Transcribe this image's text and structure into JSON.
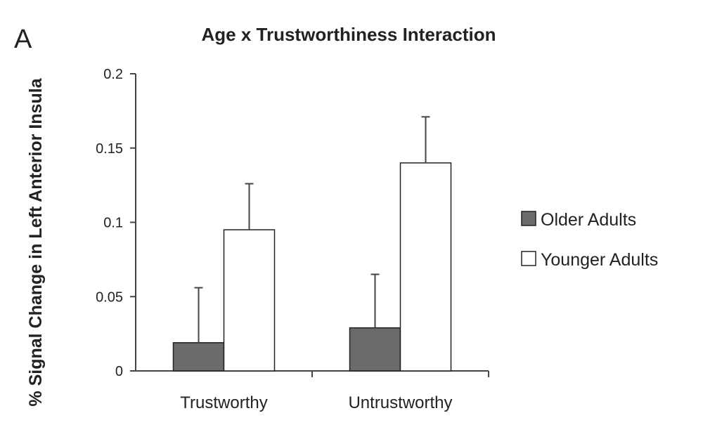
{
  "panel_label": "A",
  "chart_data": {
    "type": "bar",
    "title": "Age x Trustworthiness Interaction",
    "xlabel": "",
    "ylabel": "% Signal Change in Left Anterior Insula",
    "ylim": [
      0,
      0.2
    ],
    "yticks": [
      0,
      0.05,
      0.1,
      0.15,
      0.2
    ],
    "ytick_labels": [
      "0",
      "0.05",
      "0.1",
      "0.15",
      "0.2"
    ],
    "categories": [
      "Trustworthy",
      "Untrustworthy"
    ],
    "series": [
      {
        "name": "Older Adults",
        "values": [
          0.019,
          0.029
        ],
        "error_upper": [
          0.056,
          0.065
        ],
        "color": "#6b6b6b"
      },
      {
        "name": "Younger Adults",
        "values": [
          0.095,
          0.14
        ],
        "error_upper": [
          0.126,
          0.171
        ],
        "color": "#ffffff"
      }
    ],
    "grid": false,
    "legend_position": "right",
    "error_bars": "upper"
  }
}
